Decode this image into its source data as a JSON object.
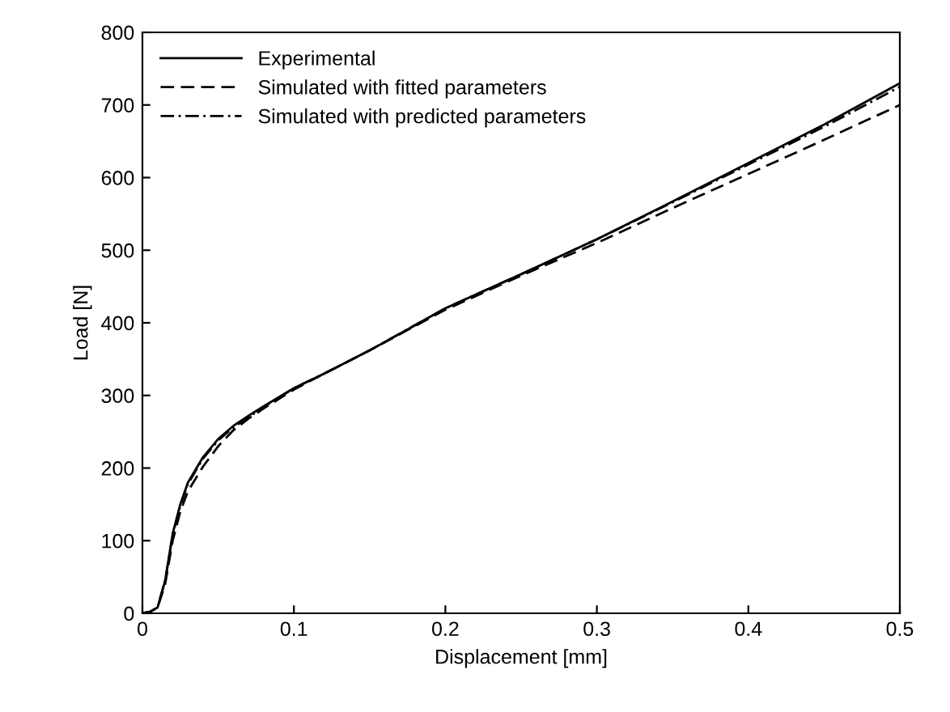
{
  "chart_data": {
    "type": "line",
    "xlabel": "Displacement [mm]",
    "ylabel": "Load [N]",
    "xlim": [
      0,
      0.5
    ],
    "ylim": [
      0,
      800
    ],
    "xticks": [
      0,
      0.1,
      0.2,
      0.3,
      0.4,
      0.5
    ],
    "yticks": [
      0,
      100,
      200,
      300,
      400,
      500,
      600,
      700,
      800
    ],
    "grid": false,
    "legend": "top left",
    "marker": "none",
    "series": [
      {
        "name": "Experimental",
        "color": "#000000",
        "line_style": "solid",
        "x": [
          0,
          0.005,
          0.01,
          0.015,
          0.02,
          0.025,
          0.03,
          0.04,
          0.05,
          0.06,
          0.07,
          0.08,
          0.1,
          0.12,
          0.15,
          0.2,
          0.25,
          0.3,
          0.35,
          0.4,
          0.45,
          0.5
        ],
        "values": [
          0,
          2,
          8,
          45,
          110,
          150,
          180,
          215,
          240,
          258,
          272,
          285,
          310,
          330,
          362,
          420,
          467,
          515,
          567,
          620,
          673,
          730
        ]
      },
      {
        "name": "Simulated with fitted parameters",
        "color": "#000000",
        "line_style": "dashed",
        "x": [
          0,
          0.005,
          0.01,
          0.015,
          0.02,
          0.025,
          0.03,
          0.04,
          0.05,
          0.06,
          0.07,
          0.08,
          0.1,
          0.12,
          0.15,
          0.2,
          0.25,
          0.3,
          0.35,
          0.4,
          0.45,
          0.5
        ],
        "values": [
          0,
          2,
          8,
          40,
          100,
          140,
          168,
          202,
          230,
          252,
          268,
          282,
          308,
          330,
          362,
          418,
          465,
          510,
          558,
          605,
          652,
          700
        ]
      },
      {
        "name": "Simulated with predicted parameters",
        "color": "#000000",
        "line_style": "dashdot",
        "x": [
          0,
          0.005,
          0.01,
          0.015,
          0.02,
          0.025,
          0.03,
          0.04,
          0.05,
          0.06,
          0.07,
          0.08,
          0.1,
          0.12,
          0.15,
          0.2,
          0.25,
          0.3,
          0.35,
          0.4,
          0.45,
          0.5
        ],
        "values": [
          0,
          2,
          8,
          45,
          108,
          148,
          178,
          213,
          238,
          256,
          270,
          284,
          310,
          330,
          362,
          420,
          467,
          515,
          566,
          618,
          670,
          725
        ]
      }
    ]
  }
}
